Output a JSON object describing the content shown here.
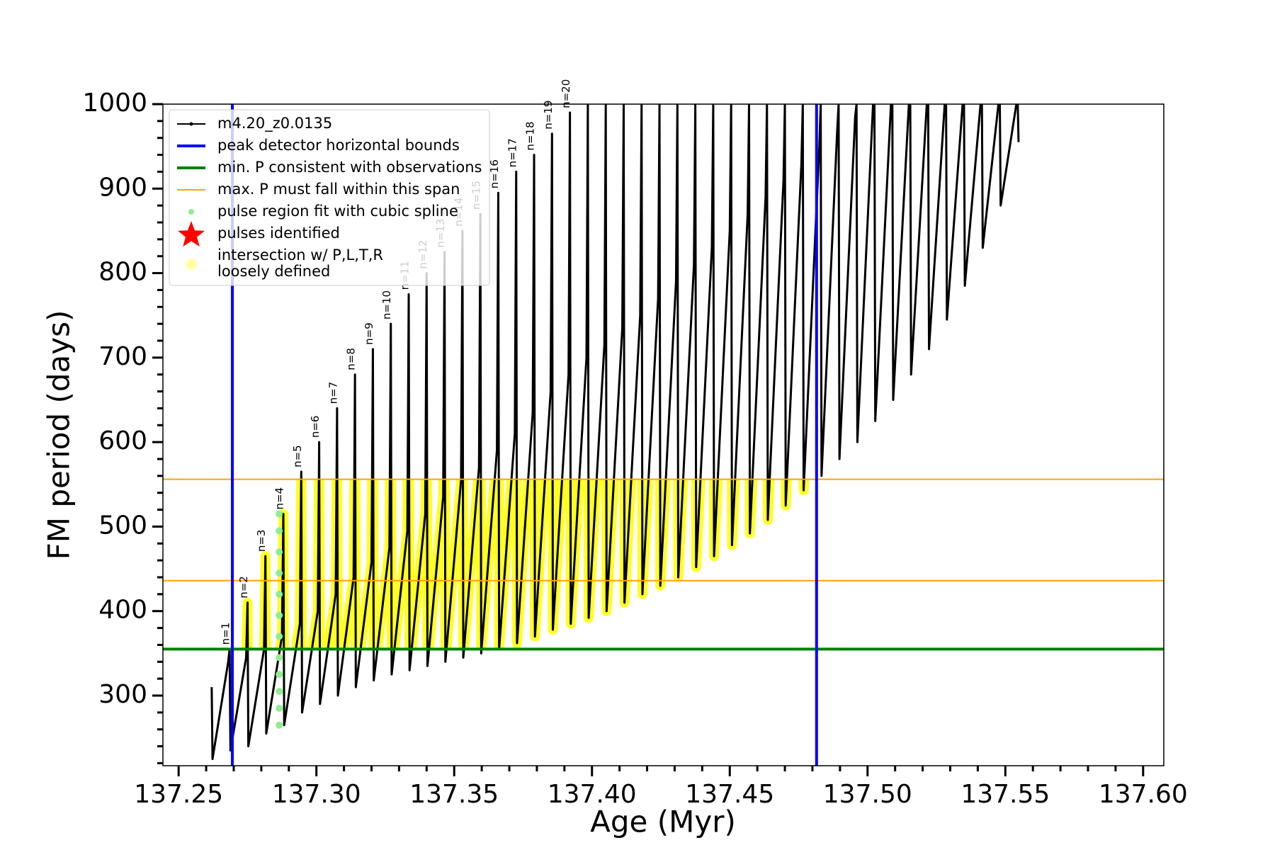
{
  "chart_data": {
    "type": "line",
    "xlabel": "Age (Myr)",
    "ylabel": "FM period (days)",
    "xlim": [
      137.2443,
      137.6075
    ],
    "ylim": [
      217,
      1000
    ],
    "xticks": [
      137.25,
      {
        "value": 137.3,
        "label": "137.30"
      },
      137.35,
      {
        "value": 137.4,
        "label": "137.40"
      },
      137.45,
      {
        "value": 137.5,
        "label": "137.50"
      },
      137.55,
      {
        "value": 137.6,
        "label": "137.60"
      }
    ],
    "xminorticks": [
      137.26,
      137.27,
      137.28,
      137.29,
      137.31,
      137.32,
      137.33,
      137.34,
      137.36,
      137.37,
      137.38,
      137.39,
      137.41,
      137.42,
      137.43,
      137.44,
      137.46,
      137.47,
      137.48,
      137.49,
      137.51,
      137.52,
      137.53,
      137.54,
      137.56,
      137.57,
      137.58,
      137.59
    ],
    "yticks": [
      300,
      400,
      500,
      600,
      700,
      800,
      900,
      1000
    ],
    "yminorticks": [
      220,
      240,
      260,
      280,
      320,
      340,
      360,
      380,
      420,
      440,
      460,
      480,
      520,
      540,
      560,
      580,
      620,
      640,
      660,
      680,
      720,
      740,
      760,
      780,
      820,
      840,
      860,
      880,
      920,
      940,
      960,
      980
    ],
    "series": [
      {
        "name": "m4.20_z0.0135",
        "type": "line",
        "color": "#000000",
        "x": [
          137.262,
          137.2623,
          137.268,
          137.2685,
          137.2688,
          137.2745,
          137.275,
          137.2753,
          137.281,
          137.2815,
          137.2818,
          137.2875,
          137.288,
          137.2883,
          137.294,
          137.2945,
          137.2948,
          137.3005,
          137.301,
          137.3013,
          137.307,
          137.3075,
          137.3078,
          137.3135,
          137.314,
          137.3143,
          137.32,
          137.3205,
          137.3208,
          137.3265,
          137.327,
          137.3273,
          137.333,
          137.3335,
          137.3338,
          137.3395,
          137.34,
          137.3403,
          137.346,
          137.3465,
          137.3468,
          137.3525,
          137.353,
          137.3533,
          137.359,
          137.3595,
          137.3598,
          137.3655,
          137.366,
          137.3663,
          137.372,
          137.3725,
          137.3728,
          137.3785,
          137.379,
          137.3793,
          137.385,
          137.3855,
          137.3858,
          137.3915,
          137.392,
          137.3923,
          137.398,
          137.3985,
          137.3988,
          137.4045,
          137.405,
          137.4053,
          137.411,
          137.4115,
          137.4118,
          137.4175,
          137.418,
          137.4183,
          137.424,
          137.4245,
          137.4248,
          137.4305,
          137.431,
          137.4313,
          137.437,
          137.4375,
          137.4378,
          137.4435,
          137.444,
          137.4443,
          137.45,
          137.4505,
          137.4508,
          137.4565,
          137.457,
          137.4573,
          137.463,
          137.4635,
          137.4638,
          137.4695,
          137.47,
          137.4703,
          137.476,
          137.4765,
          137.4768,
          137.4825,
          137.483,
          137.4833,
          137.489,
          137.4895,
          137.4898,
          137.4955,
          137.496,
          137.4963,
          137.502,
          137.5025,
          137.5028,
          137.5085,
          137.509,
          137.5093,
          137.515,
          137.5155,
          137.5158,
          137.5215,
          137.522,
          137.5223,
          137.528,
          137.5285,
          137.5288,
          137.5345,
          137.535,
          137.5353,
          137.541,
          137.5415,
          137.5418,
          137.5475,
          137.548,
          137.5483,
          137.554,
          137.5545,
          137.5548
        ],
        "values": [
          310,
          225,
          340,
          355,
          235,
          345,
          410,
          240,
          355,
          465,
          255,
          370,
          515,
          265,
          385,
          565,
          280,
          400,
          600,
          290,
          420,
          640,
          300,
          440,
          680,
          310,
          458,
          710,
          318,
          475,
          740,
          325,
          495,
          775,
          330,
          515,
          800,
          335,
          535,
          825,
          340,
          555,
          850,
          345,
          570,
          870,
          350,
          590,
          895,
          355,
          610,
          920,
          362,
          635,
          940,
          370,
          660,
          965,
          378,
          680,
          990,
          385,
          700,
          1000,
          392,
          715,
          1000,
          400,
          735,
          1000,
          410,
          750,
          1000,
          420,
          770,
          1000,
          430,
          790,
          1000,
          440,
          810,
          1000,
          452,
          830,
          1000,
          465,
          850,
          1000,
          478,
          870,
          1000,
          492,
          890,
          1000,
          508,
          910,
          1000,
          525,
          930,
          1000,
          543,
          950,
          1000,
          560,
          970,
          1000,
          580,
          985,
          1000,
          600,
          1000,
          1000,
          625,
          1000,
          1000,
          650,
          1000,
          1000,
          680,
          1000,
          1000,
          710,
          1000,
          1000,
          745,
          1000,
          1000,
          785,
          1000,
          1000,
          830,
          1000,
          1000,
          880,
          1000,
          1000,
          955
        ]
      },
      {
        "name": "pulse region fit with cubic spline",
        "type": "scatter",
        "color": "#90ee90",
        "x": [
          137.2865,
          137.2865,
          137.2865,
          137.2865,
          137.2865,
          137.2865,
          137.2865,
          137.2865,
          137.2865,
          137.2865,
          137.2865,
          137.2865
        ],
        "values": [
          265,
          285,
          305,
          325,
          345,
          370,
          395,
          420,
          445,
          470,
          495,
          515
        ]
      },
      {
        "name": "pulses identified",
        "type": "star",
        "color": "#ff0000",
        "x": [],
        "values": []
      }
    ],
    "vlines": {
      "name": "peak detector horizontal bounds",
      "color": "#0000ff",
      "x": [
        137.2695,
        137.4815
      ]
    },
    "hlines": [
      {
        "name": "min. P consistent with observations",
        "color": "#008000",
        "y": [
          355
        ]
      },
      {
        "name": "max. P must fall within this span",
        "color": "#ffa500",
        "y": [
          436,
          556
        ]
      }
    ],
    "highlight": {
      "name": [
        "intersection w/ P,L,T,R",
        "loosely defined"
      ],
      "color": "#ffff00"
    },
    "pulse_labels": [
      "n=1",
      "n=2",
      "n=3",
      "n=4",
      "n=5",
      "n=6",
      "n=7",
      "n=8",
      "n=9",
      "n=10",
      "n=11",
      "n=12",
      "n=13",
      "n=14",
      "n=15",
      "n=16",
      "n=17",
      "n=18",
      "n=19",
      "n=20"
    ]
  }
}
